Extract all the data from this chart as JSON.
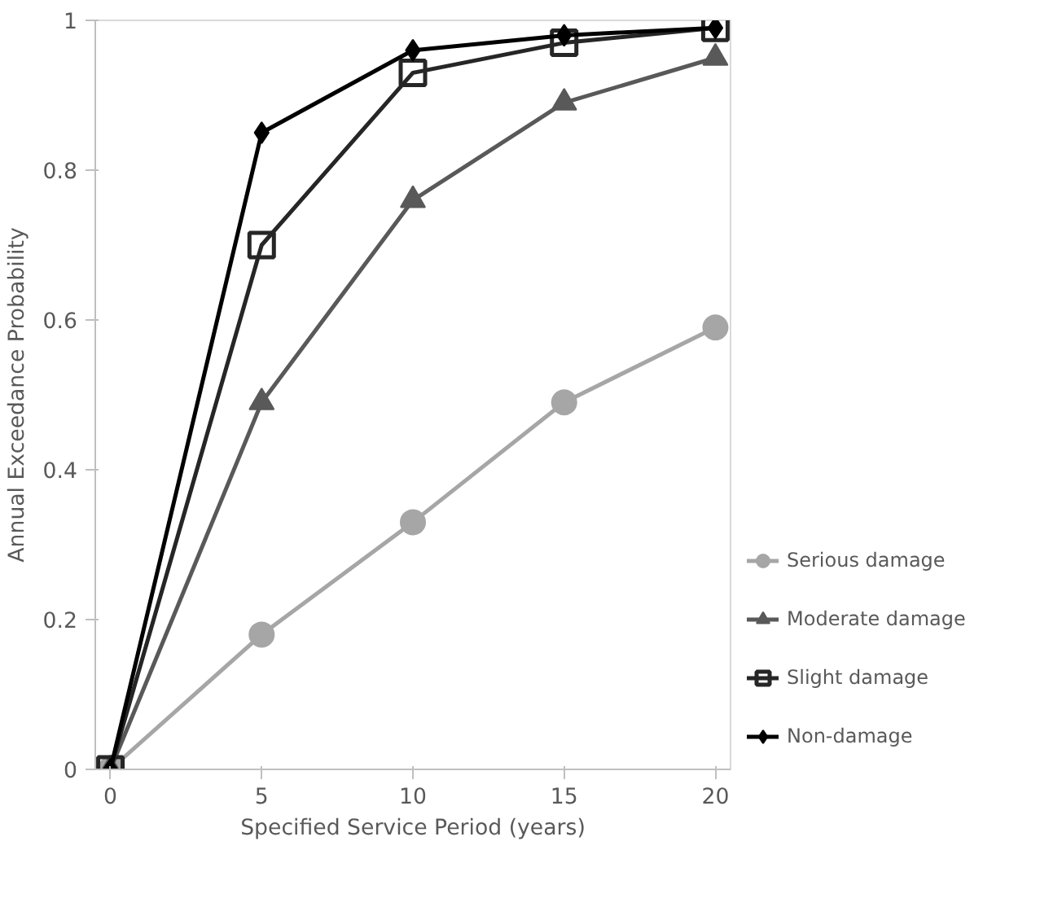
{
  "chart_data": {
    "type": "line",
    "xlabel": "Specified Service Period (years)",
    "ylabel": "Annual Exceedance Probability",
    "x": [
      0,
      5,
      10,
      15,
      20
    ],
    "xlim": [
      -0.5,
      20.5
    ],
    "xticks": [
      0,
      5,
      10,
      15,
      20
    ],
    "ylim": [
      0,
      1
    ],
    "yticks": [
      0,
      0.2,
      0.4,
      0.6,
      0.8,
      1
    ],
    "grid": false,
    "legend": "right",
    "series": [
      {
        "name": "Serious damage",
        "color": "#a6a6a6",
        "marker": "circle",
        "values": [
          0,
          0.18,
          0.33,
          0.49,
          0.59
        ]
      },
      {
        "name": "Moderate damage",
        "color": "#595959",
        "marker": "triangle",
        "values": [
          0,
          0.49,
          0.76,
          0.89,
          0.95
        ]
      },
      {
        "name": "Slight damage",
        "color": "#262626",
        "marker": "square",
        "values": [
          0,
          0.7,
          0.93,
          0.97,
          0.99
        ]
      },
      {
        "name": "Non-damage",
        "color": "#000000",
        "marker": "diamond",
        "values": [
          0,
          0.85,
          0.96,
          0.98,
          0.99
        ]
      }
    ]
  }
}
